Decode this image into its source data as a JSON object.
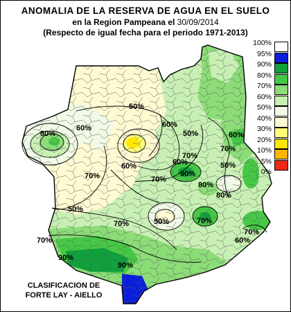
{
  "title": {
    "line1": "ANOMALIA DE LA RESERVA DE AGUA EN EL SUELO",
    "line2_prefix": "en la Region Pampeana el ",
    "line2_date": "30/09/2014",
    "line3": "(Respecto de igual fecha para el periodo 1971-2013)"
  },
  "legend": [
    {
      "label": "100%",
      "color": "#ffffff"
    },
    {
      "label": "95%",
      "color": "#0a1edc"
    },
    {
      "label": "90%",
      "color": "#10a03c"
    },
    {
      "label": "80%",
      "color": "#46c846"
    },
    {
      "label": "70%",
      "color": "#8cdc78"
    },
    {
      "label": "60%",
      "color": "#c8f0b4"
    },
    {
      "label": "50%",
      "color": "#f0fae6"
    },
    {
      "label": "40%",
      "color": "#fffad2"
    },
    {
      "label": "30%",
      "color": "#ffff78"
    },
    {
      "label": "20%",
      "color": "#ffe600"
    },
    {
      "label": "10%",
      "color": "#ffb400"
    },
    {
      "label": "5%",
      "color": "#f02814"
    },
    {
      "label": "0%",
      "color": "#ffffff"
    }
  ],
  "contour_labels": [
    "50%",
    "50%",
    "50%",
    "60%",
    "60%",
    "60%",
    "60%",
    "60%",
    "70%",
    "70%",
    "70%",
    "70%",
    "70%",
    "70%",
    "70%",
    "70%",
    "80%",
    "80%",
    "80%",
    "90%",
    "90%",
    "90%",
    "50%",
    "50%",
    "60%"
  ],
  "credit": {
    "line1": "CLASIFICACION DE",
    "line2": "FORTE LAY - AIELLO"
  }
}
